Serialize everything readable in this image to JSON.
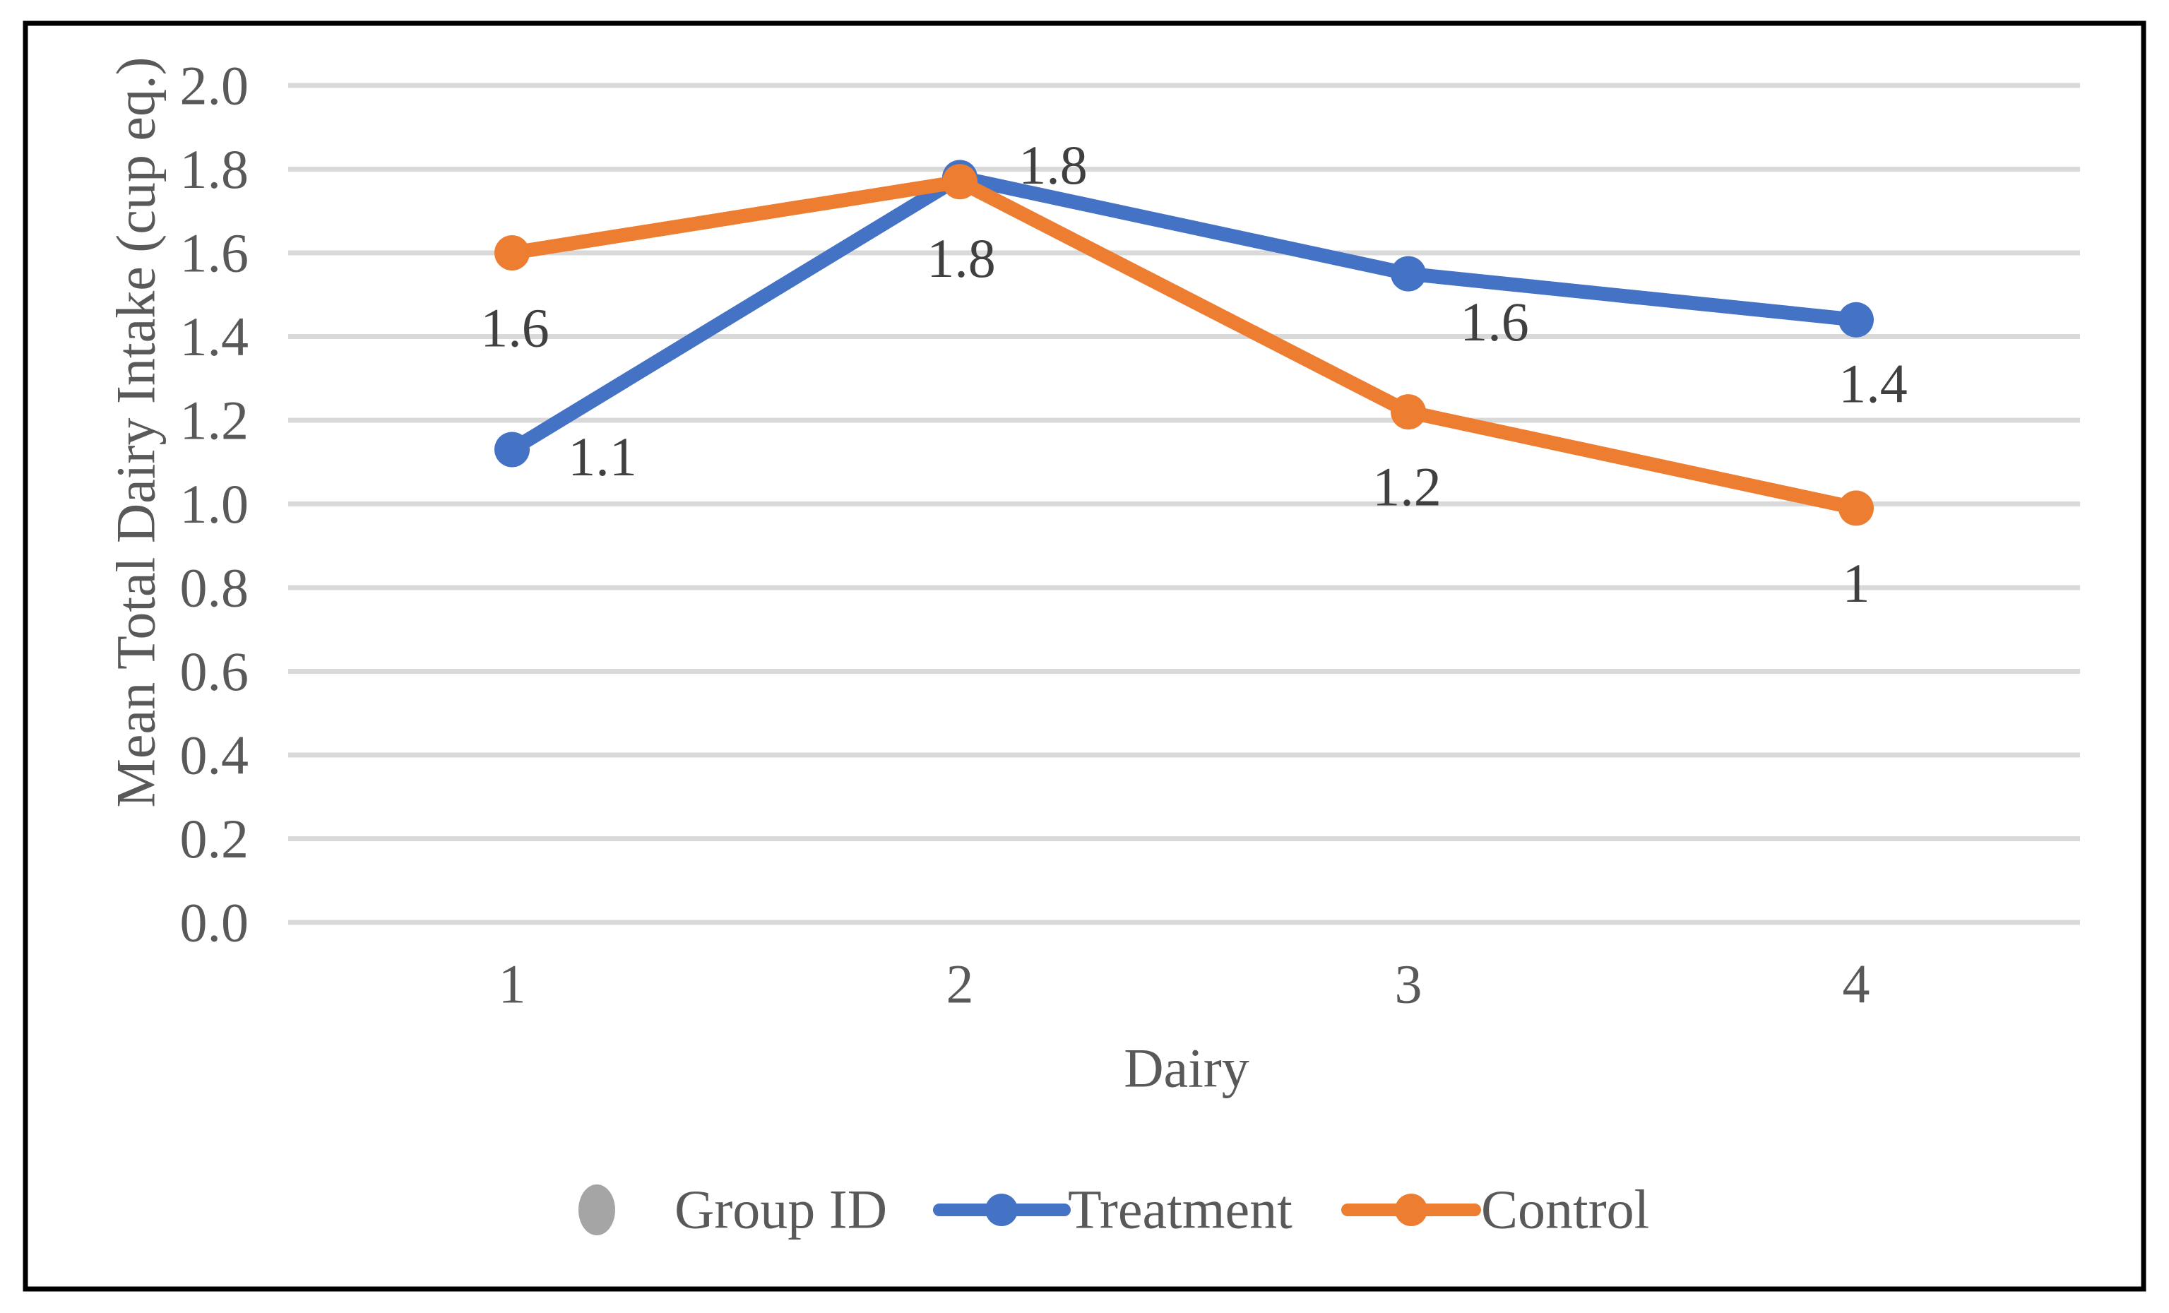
{
  "figure": {
    "background": "#FFFFFF",
    "border_color": "#000000"
  },
  "chart_data": {
    "type": "line",
    "title": "",
    "xlabel": "Dairy",
    "ylabel": "Mean Total Dairy Intake (cup eq.)",
    "categories": [
      "1",
      "2",
      "3",
      "4"
    ],
    "series": [
      {
        "name": "Group ID",
        "color": "#A5A5A5",
        "legend_marker": "dot",
        "values": null,
        "labels": null
      },
      {
        "name": "Treatment",
        "color": "#4472C4",
        "legend_marker": "line-dot",
        "values": [
          1.13,
          1.78,
          1.55,
          1.44
        ],
        "labels": [
          "1.1",
          "1.8",
          "1.6",
          "1.4"
        ]
      },
      {
        "name": "Control",
        "color": "#ED7D31",
        "legend_marker": "line-dot",
        "values": [
          1.6,
          1.77,
          1.22,
          0.99
        ],
        "labels": [
          "1.6",
          "1.8",
          "1.2",
          "1"
        ]
      }
    ],
    "ylim": [
      0.0,
      2.0
    ],
    "ytick_step": 0.2,
    "yticks": [
      "0.0",
      "0.2",
      "0.4",
      "0.6",
      "0.8",
      "1.0",
      "1.2",
      "1.4",
      "1.6",
      "1.8",
      "2.0"
    ],
    "grid": true,
    "gridline_color": "#D9D9D9",
    "axis_text_color": "#595959",
    "data_label_color": "#404040",
    "legend_position": "bottom",
    "legend_entries": [
      "Group ID",
      "Treatment",
      "Control"
    ]
  }
}
